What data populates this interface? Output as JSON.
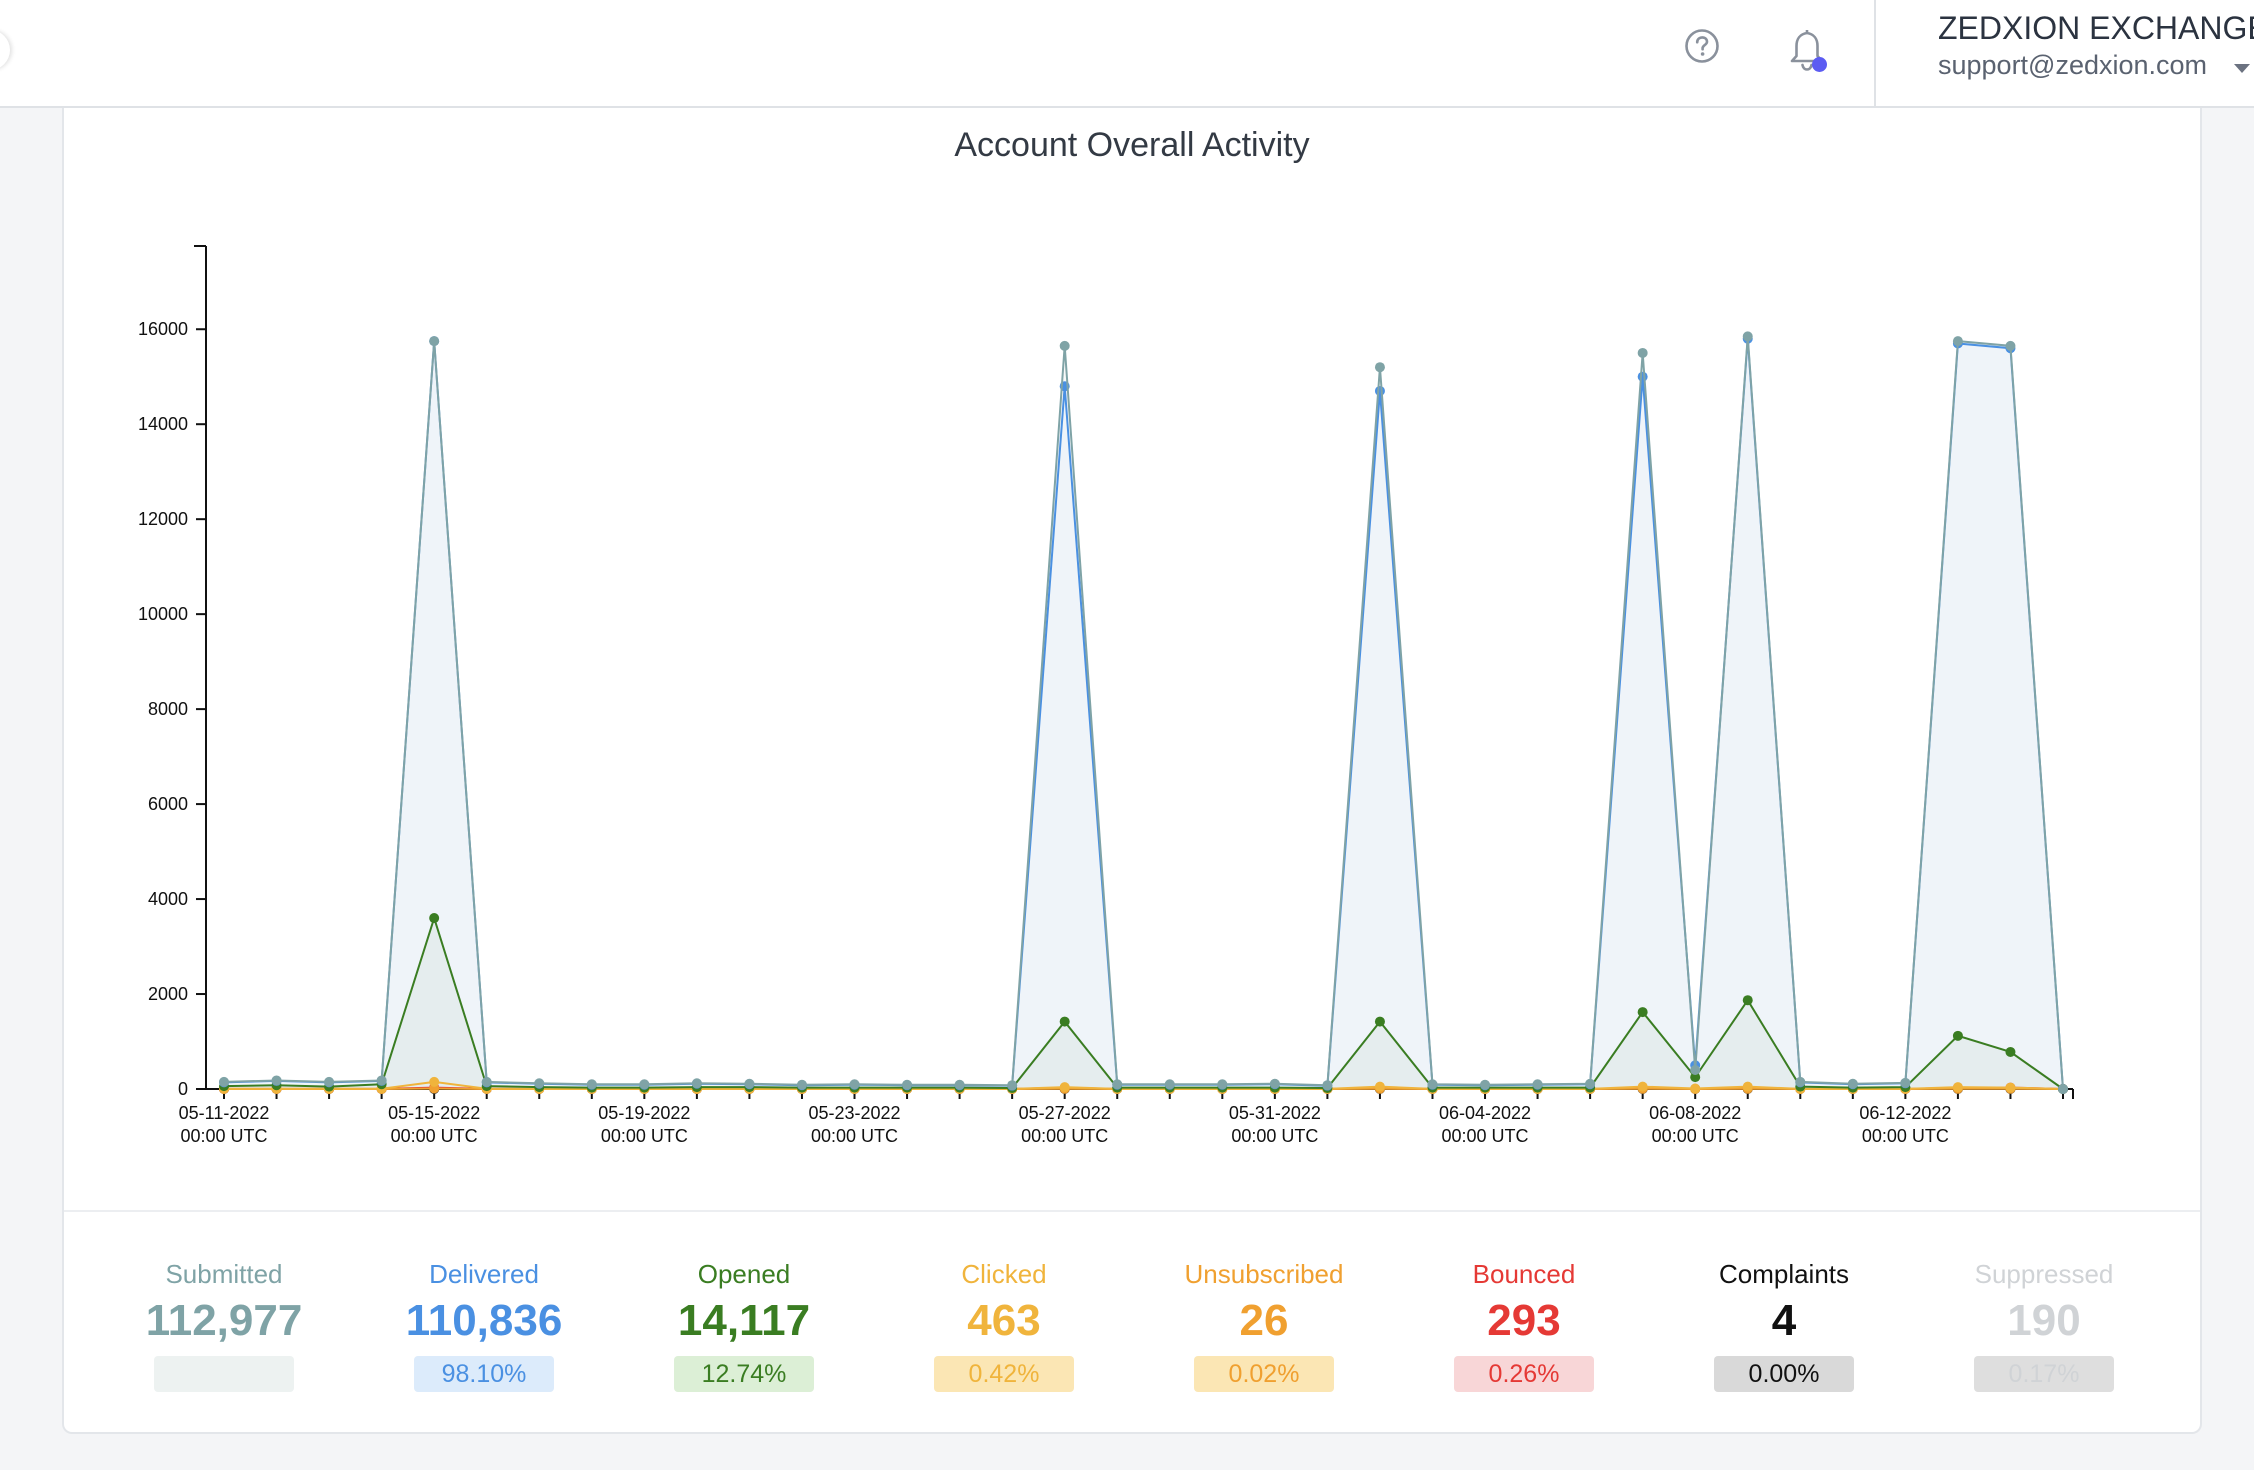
{
  "header": {
    "org_name": "ZEDXION EXCHANGE",
    "email": "support@zedxion.com",
    "icons": [
      "help-circle-icon",
      "bell-icon",
      "chevron-down-icon"
    ],
    "notification_dot_color": "#5c5cf2"
  },
  "chart_data": {
    "type": "line",
    "title": "Account Overall Activity",
    "xlabel": "",
    "ylabel": "",
    "ylim": [
      0,
      17500
    ],
    "yticks": [
      0,
      2000,
      4000,
      6000,
      8000,
      10000,
      12000,
      14000,
      16000
    ],
    "x": [
      "05-11-2022",
      "05-12-2022",
      "05-13-2022",
      "05-14-2022",
      "05-15-2022",
      "05-16-2022",
      "05-17-2022",
      "05-18-2022",
      "05-19-2022",
      "05-20-2022",
      "05-21-2022",
      "05-22-2022",
      "05-23-2022",
      "05-24-2022",
      "05-25-2022",
      "05-26-2022",
      "05-27-2022",
      "05-28-2022",
      "05-29-2022",
      "05-30-2022",
      "05-31-2022",
      "06-01-2022",
      "06-02-2022",
      "06-03-2022",
      "06-04-2022",
      "06-05-2022",
      "06-06-2022",
      "06-07-2022",
      "06-08-2022",
      "06-09-2022",
      "06-10-2022",
      "06-11-2022",
      "06-12-2022",
      "06-13-2022",
      "06-14-2022",
      "06-15-2022"
    ],
    "xtick_labels": [
      {
        "date": "05-11-2022",
        "time": "00:00 UTC"
      },
      {
        "date": "05-15-2022",
        "time": "00:00 UTC"
      },
      {
        "date": "05-19-2022",
        "time": "00:00 UTC"
      },
      {
        "date": "05-23-2022",
        "time": "00:00 UTC"
      },
      {
        "date": "05-27-2022",
        "time": "00:00 UTC"
      },
      {
        "date": "05-31-2022",
        "time": "00:00 UTC"
      },
      {
        "date": "06-04-2022",
        "time": "00:00 UTC"
      },
      {
        "date": "06-08-2022",
        "time": "00:00 UTC"
      },
      {
        "date": "06-12-2022",
        "time": "00:00 UTC"
      }
    ],
    "series": [
      {
        "name": "Submitted",
        "color": "#7fa3a6",
        "fill": true,
        "values": [
          150,
          180,
          150,
          180,
          15750,
          150,
          120,
          100,
          100,
          120,
          110,
          90,
          100,
          90,
          90,
          80,
          15650,
          100,
          100,
          100,
          110,
          80,
          15200,
          100,
          90,
          100,
          110,
          15500,
          400,
          15850,
          150,
          110,
          130,
          15750,
          15650,
          0
        ]
      },
      {
        "name": "Delivered",
        "color": "#4a90e2",
        "fill": true,
        "values": [
          140,
          170,
          140,
          170,
          15750,
          140,
          110,
          90,
          90,
          110,
          100,
          80,
          90,
          80,
          80,
          70,
          14800,
          90,
          90,
          90,
          100,
          70,
          14700,
          90,
          80,
          90,
          100,
          15000,
          500,
          15800,
          140,
          100,
          120,
          15700,
          15600,
          0
        ]
      },
      {
        "name": "Opened",
        "color": "#3a7d22",
        "fill": true,
        "values": [
          60,
          80,
          50,
          100,
          3600,
          60,
          40,
          30,
          30,
          40,
          40,
          30,
          30,
          30,
          30,
          20,
          1420,
          30,
          30,
          30,
          30,
          20,
          1420,
          30,
          30,
          30,
          30,
          1620,
          250,
          1870,
          50,
          30,
          40,
          1120,
          780,
          0
        ]
      },
      {
        "name": "Clicked",
        "color": "#f0b43c",
        "fill": false,
        "values": [
          5,
          5,
          5,
          5,
          150,
          5,
          2,
          2,
          2,
          2,
          2,
          2,
          2,
          2,
          2,
          2,
          40,
          2,
          2,
          2,
          2,
          2,
          50,
          2,
          2,
          2,
          2,
          50,
          10,
          50,
          2,
          2,
          2,
          40,
          30,
          0
        ]
      },
      {
        "name": "Unsubscribed",
        "color": "#f0a030",
        "fill": false,
        "values": [
          0,
          0,
          0,
          0,
          10,
          0,
          0,
          0,
          0,
          0,
          0,
          0,
          0,
          0,
          0,
          0,
          5,
          0,
          0,
          0,
          0,
          0,
          5,
          0,
          0,
          0,
          0,
          5,
          0,
          5,
          0,
          0,
          0,
          5,
          5,
          0
        ]
      },
      {
        "name": "Bounced",
        "color": "#e53935",
        "fill": false,
        "values": [
          2,
          2,
          2,
          2,
          30,
          2,
          1,
          1,
          1,
          1,
          1,
          1,
          1,
          1,
          1,
          1,
          30,
          1,
          1,
          1,
          1,
          1,
          30,
          1,
          1,
          1,
          1,
          30,
          5,
          30,
          1,
          1,
          1,
          30,
          30,
          0
        ]
      },
      {
        "name": "Complaints",
        "color": "#111111",
        "fill": false,
        "values": [
          0,
          0,
          0,
          0,
          1,
          0,
          0,
          0,
          0,
          0,
          0,
          0,
          0,
          0,
          0,
          0,
          0,
          0,
          0,
          0,
          0,
          0,
          1,
          0,
          0,
          0,
          0,
          1,
          0,
          1,
          0,
          0,
          0,
          0,
          0,
          0
        ]
      }
    ],
    "grid": false,
    "legend": "none"
  },
  "stats": [
    {
      "name": "submitted",
      "label": "Submitted",
      "value": "112,977",
      "pct": "",
      "color": "#7fa3a6",
      "bg": "#edf2f1"
    },
    {
      "name": "delivered",
      "label": "Delivered",
      "value": "110,836",
      "pct": "98.10%",
      "color": "#4a90e2",
      "bg": "#dcebfb"
    },
    {
      "name": "opened",
      "label": "Opened",
      "value": "14,117",
      "pct": "12.74%",
      "color": "#3a7d22",
      "bg": "#dcefd6"
    },
    {
      "name": "clicked",
      "label": "Clicked",
      "value": "463",
      "pct": "0.42%",
      "color": "#f0b43c",
      "bg": "#fbe6b4"
    },
    {
      "name": "unsubscribed",
      "label": "Unsubscribed",
      "value": "26",
      "pct": "0.02%",
      "color": "#f0a030",
      "bg": "#fbe6b4"
    },
    {
      "name": "bounced",
      "label": "Bounced",
      "value": "293",
      "pct": "0.26%",
      "color": "#e53935",
      "bg": "#f8d6d7"
    },
    {
      "name": "complaints",
      "label": "Complaints",
      "value": "4",
      "pct": "0.00%",
      "color": "#111111",
      "bg": "#d9d9d9"
    },
    {
      "name": "suppressed",
      "label": "Suppressed",
      "value": "190",
      "pct": "0.17%",
      "color": "#d0d3d6",
      "bg": "#dedede"
    }
  ]
}
